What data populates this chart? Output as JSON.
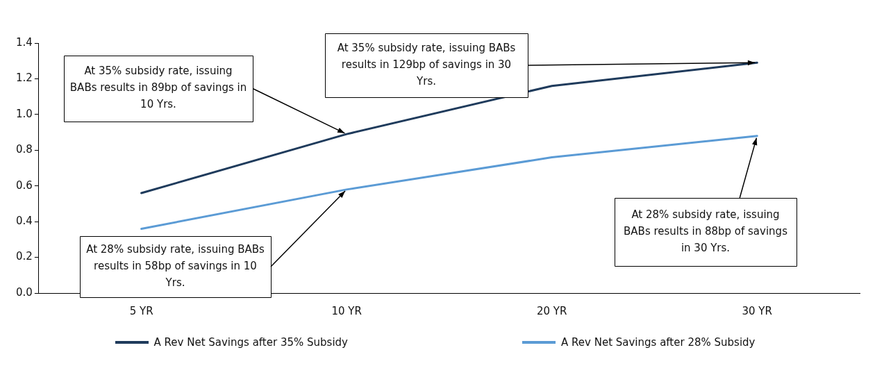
{
  "chart_data": {
    "type": "line",
    "categories": [
      "5 YR",
      "10 YR",
      "20 YR",
      "30 YR"
    ],
    "series": [
      {
        "name": "A Rev Net Savings after 35% Subsidy",
        "color": "#1f3b5c",
        "values": [
          0.56,
          0.89,
          1.16,
          1.29
        ]
      },
      {
        "name": "A Rev Net Savings after 28% Subsidy",
        "color": "#5b9bd5",
        "values": [
          0.36,
          0.58,
          0.76,
          0.88
        ]
      }
    ],
    "ylim": [
      0,
      1.4
    ],
    "yticks": [
      {
        "value": 0,
        "label": "0.0"
      },
      0.2,
      0.4,
      0.6,
      0.8,
      {
        "value": 1,
        "label": "1.0"
      },
      1.2,
      1.4
    ],
    "grid": false,
    "legend": "bottom",
    "marker": "none",
    "line_style": "solid",
    "annotations": [
      {
        "text": "At 35% subsidy rate, issuing BABs results in 89bp of savings in 10 Yrs.",
        "x": "10 YR",
        "y": 0.89
      },
      {
        "text": "At 35% subsidy rate, issuing BABs results in 129bp of savings in 30 Yrs.",
        "x": "30 YR",
        "y": 1.29
      },
      {
        "text": "At 28% subsidy rate, issuing BABs results in 58bp of savings in 10 Yrs.",
        "x": "10 YR",
        "y": 0.58
      },
      {
        "text": "At 28% subsidy rate, issuing BABs results in 88bp of savings in 30 Yrs.",
        "x": "30 YR",
        "y": 0.88
      }
    ]
  }
}
